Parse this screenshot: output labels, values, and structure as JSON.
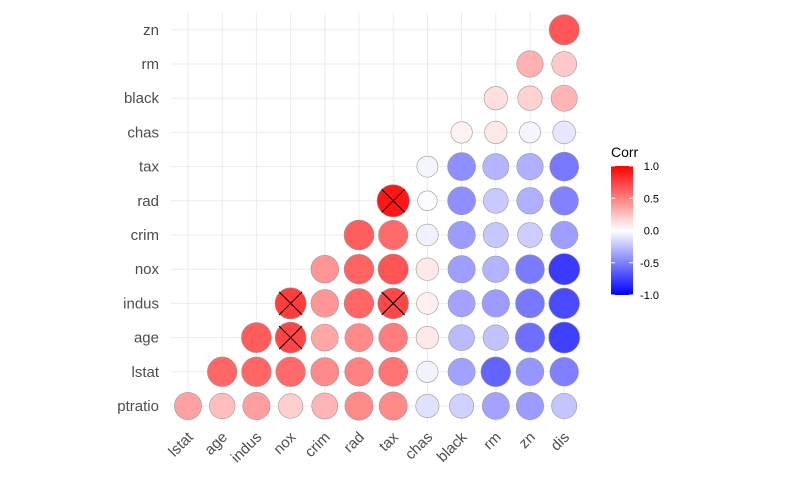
{
  "chart_data": {
    "type": "heatmap",
    "title": "",
    "xlabel": "",
    "ylabel": "",
    "x_labels": [
      "lstat",
      "age",
      "indus",
      "nox",
      "crim",
      "rad",
      "tax",
      "chas",
      "black",
      "rm",
      "zn",
      "dis"
    ],
    "y_labels": [
      "ptratio",
      "lstat",
      "age",
      "indus",
      "nox",
      "crim",
      "rad",
      "tax",
      "chas",
      "black",
      "rm",
      "zn"
    ],
    "values": [
      [
        0.37,
        0.26,
        0.38,
        0.19,
        0.29,
        0.46,
        0.46,
        -0.12,
        -0.18,
        -0.36,
        -0.39,
        -0.23
      ],
      [
        null,
        0.6,
        0.6,
        0.59,
        0.46,
        0.49,
        0.54,
        -0.05,
        -0.37,
        -0.61,
        -0.41,
        -0.5
      ],
      [
        null,
        null,
        0.64,
        0.73,
        0.35,
        0.46,
        0.51,
        0.09,
        -0.27,
        -0.24,
        -0.57,
        -0.75
      ],
      [
        null,
        null,
        null,
        0.76,
        0.41,
        0.6,
        0.72,
        0.06,
        -0.36,
        -0.39,
        -0.53,
        -0.71
      ],
      [
        null,
        null,
        null,
        null,
        0.42,
        0.61,
        0.67,
        0.09,
        -0.38,
        -0.3,
        -0.52,
        -0.77
      ],
      [
        null,
        null,
        null,
        null,
        null,
        0.63,
        0.58,
        -0.06,
        -0.39,
        -0.22,
        -0.2,
        -0.38
      ],
      [
        null,
        null,
        null,
        null,
        null,
        null,
        0.91,
        -0.01,
        -0.44,
        -0.21,
        -0.31,
        -0.49
      ],
      [
        null,
        null,
        null,
        null,
        null,
        null,
        null,
        -0.04,
        -0.44,
        -0.29,
        -0.31,
        -0.53
      ],
      [
        null,
        null,
        null,
        null,
        null,
        null,
        null,
        null,
        0.05,
        0.09,
        -0.04,
        -0.1
      ],
      [
        null,
        null,
        null,
        null,
        null,
        null,
        null,
        null,
        null,
        0.13,
        0.18,
        0.29
      ],
      [
        null,
        null,
        null,
        null,
        null,
        null,
        null,
        null,
        null,
        null,
        0.31,
        0.21
      ],
      [
        null,
        null,
        null,
        null,
        null,
        null,
        null,
        null,
        null,
        null,
        null,
        0.66
      ]
    ],
    "crossed": [
      [
        2,
        3
      ],
      [
        3,
        3
      ],
      [
        3,
        6
      ],
      [
        6,
        6
      ]
    ],
    "legend": {
      "title": "Corr",
      "range": [
        -1,
        1
      ],
      "ticks": [
        "1.0",
        "0.5",
        "0.0",
        "-0.5",
        "-1.0"
      ],
      "tick_values": [
        1.0,
        0.5,
        0.0,
        -0.5,
        -1.0
      ],
      "low_color": "#0000ff",
      "mid_color": "#ffffff",
      "high_color": "#ff0000",
      "placement": "right"
    }
  }
}
